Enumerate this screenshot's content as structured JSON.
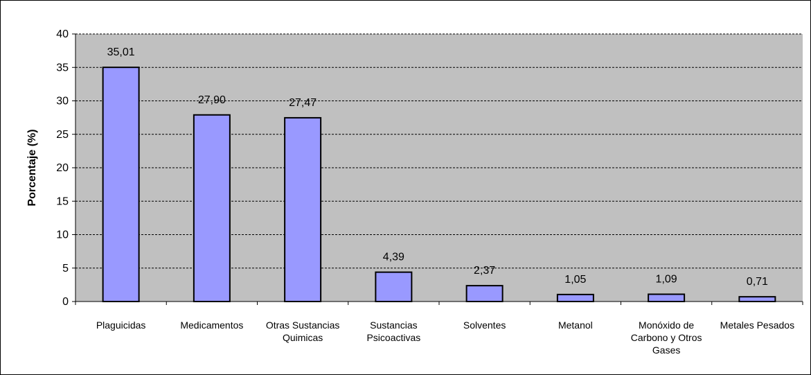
{
  "chart_data": {
    "type": "bar",
    "title": "",
    "xlabel": "",
    "ylabel": "Porcentaje  (%)",
    "ylim": [
      0,
      40
    ],
    "yticks": [
      0,
      5,
      10,
      15,
      20,
      25,
      30,
      35,
      40
    ],
    "grid": true,
    "legend": "none",
    "categories": [
      "Plaguicidas",
      "Medicamentos",
      "Otras Sustancias Quimicas",
      "Sustancias Psicoactivas",
      "Solventes",
      "Metanol",
      "Monóxido de Carbono y Otros Gases",
      "Metales Pesados"
    ],
    "category_lines": [
      [
        "Plaguicidas"
      ],
      [
        "Medicamentos"
      ],
      [
        "Otras Sustancias",
        "Quimicas"
      ],
      [
        "Sustancias",
        "Psicoactivas"
      ],
      [
        "Solventes"
      ],
      [
        "Metanol"
      ],
      [
        "Monóxido de",
        "Carbono y Otros",
        "Gases"
      ],
      [
        "Metales Pesados"
      ]
    ],
    "values": [
      35.01,
      27.9,
      27.47,
      4.39,
      2.37,
      1.05,
      1.09,
      0.71
    ],
    "data_labels": [
      "35,01",
      "27,90",
      "27,47",
      "4,39",
      "2,37",
      "1,05",
      "1,09",
      "0,71"
    ],
    "colors": {
      "bar": "#9999ff",
      "bar_stroke": "#000000",
      "plot_bg": "#c0c0c0",
      "grid": "#000000"
    }
  }
}
